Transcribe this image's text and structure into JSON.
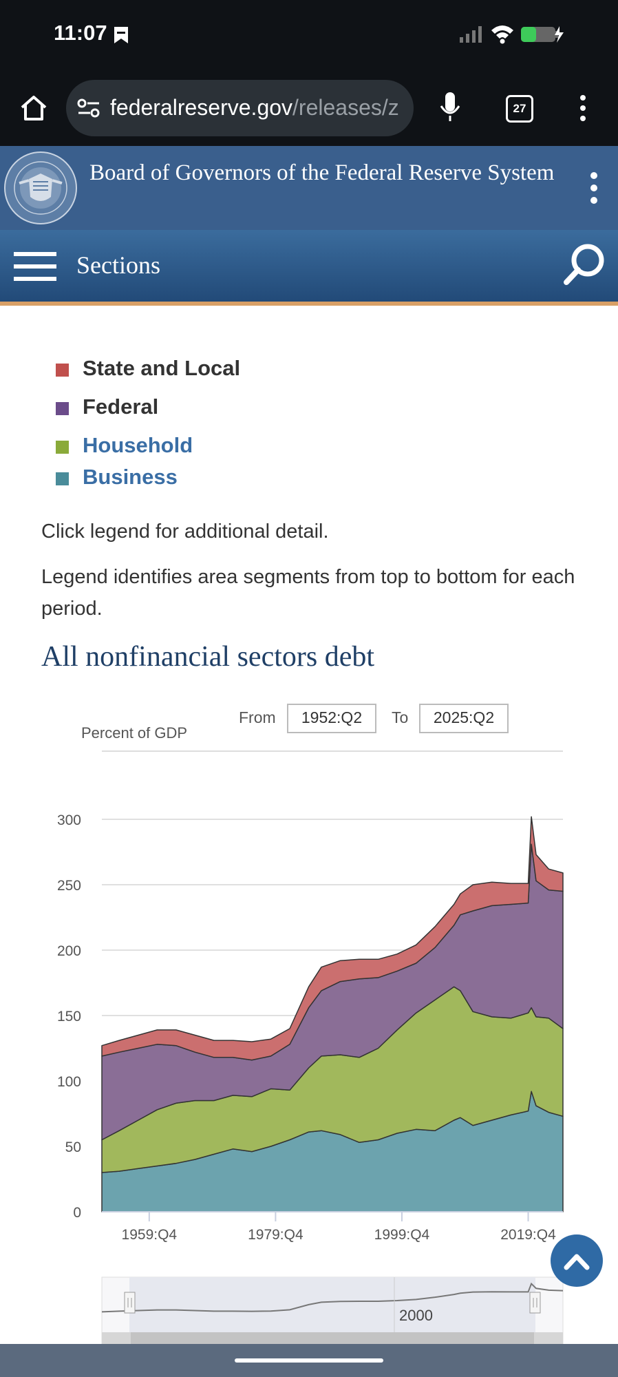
{
  "status": {
    "time": "11:07"
  },
  "browser": {
    "url_host": "federalreserve.gov",
    "url_path": "/releases/z",
    "tab_count": "27"
  },
  "site": {
    "title": "Board of Governors of the Federal Reserve System",
    "nav_label": "Sections"
  },
  "legend": [
    {
      "label": "State and Local",
      "color": "#c0504d",
      "text_color": "#333333"
    },
    {
      "label": "Federal",
      "color": "#6b4c8a",
      "text_color": "#333333"
    },
    {
      "label": "Household",
      "color": "#8aaa3a",
      "text_color": "#3a6ea5"
    },
    {
      "label": "Business",
      "color": "#4a8c9a",
      "text_color": "#3a6ea5"
    }
  ],
  "notes": {
    "click_note": "Click legend for additional detail.",
    "order_note": "Legend identifies area segments from top to bottom for each period."
  },
  "chart_title": "All nonfinancial sectors debt",
  "controls": {
    "from_label": "From",
    "from_value": "1952:Q2",
    "to_label": "To",
    "to_value": "2025:Q2"
  },
  "navigator": {
    "label": "2000"
  },
  "chart_data": {
    "type": "area",
    "stacked": true,
    "ylabel": "Percent of GDP",
    "ylim": [
      0,
      300
    ],
    "yticks": [
      0,
      50,
      100,
      150,
      200,
      250,
      300
    ],
    "x_range": [
      1952.25,
      2025.25
    ],
    "xticks": [
      {
        "label": "1959:Q4",
        "x": 1959.75
      },
      {
        "label": "1979:Q4",
        "x": 1979.75
      },
      {
        "label": "1999:Q4",
        "x": 1999.75
      },
      {
        "label": "2019:Q4",
        "x": 2019.75
      }
    ],
    "grid": true,
    "x": [
      1952.25,
      1955,
      1958,
      1961,
      1964,
      1967,
      1970,
      1973,
      1976,
      1979,
      1982,
      1985,
      1987,
      1990,
      1993,
      1996,
      1999,
      2002,
      2005,
      2008,
      2009,
      2011,
      2014,
      2017,
      2019.75,
      2020.25,
      2021,
      2023,
      2025.25
    ],
    "series": [
      {
        "name": "Business",
        "color": "#6ca3ae",
        "values": [
          30,
          31,
          33,
          35,
          37,
          40,
          44,
          48,
          46,
          50,
          55,
          61,
          62,
          59,
          53,
          55,
          60,
          63,
          62,
          70,
          72,
          66,
          70,
          74,
          77,
          92,
          81,
          76,
          73
        ]
      },
      {
        "name": "Household",
        "color": "#a1b85c",
        "values": [
          25,
          31,
          37,
          43,
          46,
          45,
          41,
          41,
          42,
          44,
          38,
          49,
          57,
          61,
          65,
          70,
          79,
          89,
          100,
          102,
          97,
          87,
          79,
          74,
          75,
          64,
          68,
          72,
          67
        ]
      },
      {
        "name": "Federal",
        "color": "#8a6e96",
        "values": [
          64,
          60,
          55,
          50,
          44,
          37,
          33,
          29,
          28,
          25,
          35,
          46,
          50,
          56,
          60,
          54,
          45,
          38,
          40,
          47,
          58,
          77,
          85,
          87,
          84,
          125,
          104,
          98,
          105
        ]
      },
      {
        "name": "State and Local",
        "color": "#cb6f6f",
        "values": [
          8,
          9,
          10,
          11,
          12,
          13,
          13,
          13,
          14,
          13,
          12,
          16,
          18,
          16,
          15,
          14,
          13,
          14,
          16,
          16,
          16,
          20,
          18,
          16,
          15,
          21,
          20,
          16,
          14
        ]
      }
    ]
  }
}
